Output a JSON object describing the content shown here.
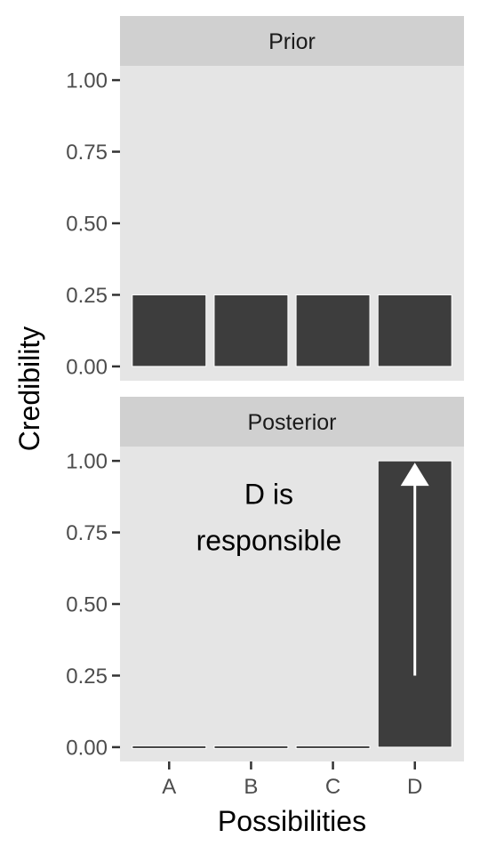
{
  "chart_data": {
    "type": "bar",
    "categories": [
      "A",
      "B",
      "C",
      "D"
    ],
    "xlabel": "Possibilities",
    "ylabel": "Credibility",
    "ylim": [
      0,
      1.0
    ],
    "yticks": [
      "0.00",
      "0.25",
      "0.50",
      "0.75",
      "1.00"
    ],
    "ytick_values": [
      0,
      0.25,
      0.5,
      0.75,
      1.0
    ],
    "grid": false,
    "colors": {
      "bar": "#3d3d3d",
      "panel": "#e5e5e5",
      "strip": "#d0d0d0",
      "arrow": "#ffffff"
    },
    "panels": [
      {
        "title": "Prior",
        "values": [
          0.25,
          0.25,
          0.25,
          0.25
        ]
      },
      {
        "title": "Posterior",
        "values": [
          0,
          0,
          0,
          1.0
        ],
        "annotation": [
          "D is",
          "responsible"
        ],
        "arrow": {
          "category": "D",
          "from": 0.25,
          "to": 1.0
        }
      }
    ]
  }
}
